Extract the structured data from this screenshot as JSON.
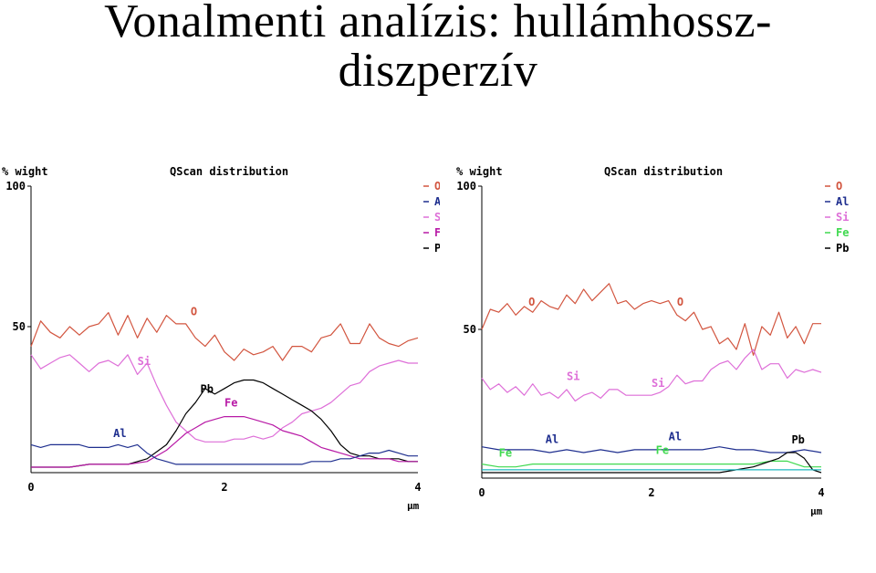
{
  "title": {
    "line1": "Vonalmenti analízis: hullámhossz-",
    "line2": "diszperzív"
  },
  "colors": {
    "O": "#d2553f",
    "Al": "#1f2f8f",
    "Si": "#de6fd8",
    "Fe_left": "#b81aa6",
    "Fe_right": "#3fd94f",
    "Pb": "#000000",
    "cyan_right": "#1fb8c0"
  },
  "chart_data": [
    {
      "type": "line",
      "title": "QScan distribution",
      "ylabel": "% wight",
      "xlabel": "µm",
      "xlim": [
        0,
        4
      ],
      "ylim": [
        0,
        100
      ],
      "xticks": [
        "0",
        "2",
        "4"
      ],
      "yticks": [
        "100",
        "50"
      ],
      "legend": [
        "O",
        "Al",
        "Si",
        "Fe",
        "Pb"
      ],
      "legend_position": "top-right",
      "series": [
        {
          "name": "O",
          "color": "#d2553f",
          "label_text": "O",
          "x": [
            0,
            0.1,
            0.2,
            0.3,
            0.4,
            0.5,
            0.6,
            0.7,
            0.8,
            0.9,
            1.0,
            1.1,
            1.2,
            1.3,
            1.4,
            1.5,
            1.6,
            1.7,
            1.8,
            1.9,
            2.0,
            2.1,
            2.2,
            2.3,
            2.4,
            2.5,
            2.6,
            2.7,
            2.8,
            2.9,
            3.0,
            3.1,
            3.2,
            3.3,
            3.4,
            3.5,
            3.6,
            3.7,
            3.8,
            3.9,
            4.0
          ],
          "y": [
            43,
            52,
            48,
            46,
            50,
            47,
            50,
            51,
            55,
            47,
            54,
            46,
            53,
            48,
            54,
            51,
            51,
            46,
            43,
            47,
            41,
            38,
            42,
            40,
            41,
            43,
            38,
            43,
            43,
            41,
            46,
            47,
            51,
            44,
            44,
            51,
            46,
            44,
            43,
            45,
            46
          ]
        },
        {
          "name": "Si",
          "color": "#de6fd8",
          "label_text": "Si",
          "x": [
            0,
            0.1,
            0.2,
            0.3,
            0.4,
            0.5,
            0.6,
            0.7,
            0.8,
            0.9,
            1.0,
            1.1,
            1.2,
            1.3,
            1.4,
            1.5,
            1.6,
            1.7,
            1.8,
            1.9,
            2.0,
            2.1,
            2.2,
            2.3,
            2.4,
            2.5,
            2.6,
            2.7,
            2.8,
            2.9,
            3.0,
            3.1,
            3.2,
            3.3,
            3.4,
            3.5,
            3.6,
            3.7,
            3.8,
            3.9,
            4.0
          ],
          "y": [
            40,
            35,
            37,
            39,
            40,
            37,
            34,
            37,
            38,
            36,
            40,
            33,
            37,
            29,
            22,
            16,
            13,
            10,
            9,
            9,
            9,
            10,
            10,
            11,
            10,
            11,
            14,
            16,
            19,
            20,
            21,
            23,
            26,
            29,
            30,
            34,
            36,
            37,
            38,
            37,
            37
          ]
        },
        {
          "name": "Pb",
          "color": "#000000",
          "label_text": "Pb",
          "x": [
            0,
            0.2,
            0.4,
            0.6,
            0.8,
            1.0,
            1.2,
            1.4,
            1.5,
            1.6,
            1.7,
            1.8,
            1.9,
            2.0,
            2.1,
            2.2,
            2.3,
            2.4,
            2.5,
            2.6,
            2.7,
            2.8,
            2.9,
            3.0,
            3.1,
            3.2,
            3.3,
            3.4,
            3.5,
            3.6,
            3.7,
            3.8,
            3.9,
            4.0
          ],
          "y": [
            0,
            0,
            0,
            1,
            1,
            1,
            3,
            8,
            13,
            19,
            23,
            28,
            26,
            28,
            30,
            31,
            31,
            30,
            28,
            26,
            24,
            22,
            20,
            17,
            13,
            8,
            5,
            4,
            4,
            3,
            3,
            3,
            2,
            2
          ]
        },
        {
          "name": "Fe",
          "color": "#b81aa6",
          "label_text": "Fe",
          "x": [
            0,
            0.2,
            0.4,
            0.6,
            0.8,
            1.0,
            1.2,
            1.4,
            1.5,
            1.6,
            1.7,
            1.8,
            1.9,
            2.0,
            2.1,
            2.2,
            2.3,
            2.4,
            2.5,
            2.6,
            2.7,
            2.8,
            2.9,
            3.0,
            3.1,
            3.2,
            3.3,
            3.4,
            3.5,
            3.6,
            3.7,
            3.8,
            3.9,
            4.0
          ],
          "y": [
            0,
            0,
            0,
            1,
            1,
            1,
            2,
            6,
            9,
            12,
            14,
            16,
            17,
            18,
            18,
            18,
            17,
            16,
            15,
            13,
            12,
            11,
            9,
            7,
            6,
            5,
            4,
            3,
            3,
            3,
            3,
            2,
            2,
            2
          ]
        },
        {
          "name": "Al",
          "color": "#1f2f8f",
          "label_text": "Al",
          "x": [
            0,
            0.1,
            0.2,
            0.3,
            0.4,
            0.5,
            0.6,
            0.7,
            0.8,
            0.9,
            1.0,
            1.1,
            1.2,
            1.3,
            1.4,
            1.5,
            1.6,
            1.7,
            1.8,
            1.9,
            2.0,
            2.1,
            2.2,
            2.3,
            2.4,
            2.5,
            2.6,
            2.7,
            2.8,
            2.9,
            3.0,
            3.1,
            3.2,
            3.3,
            3.4,
            3.5,
            3.6,
            3.7,
            3.8,
            3.9,
            4.0
          ],
          "y": [
            8,
            7,
            8,
            8,
            8,
            8,
            7,
            7,
            7,
            8,
            7,
            8,
            5,
            3,
            2,
            1,
            1,
            1,
            1,
            1,
            1,
            1,
            1,
            1,
            1,
            1,
            1,
            1,
            1,
            2,
            2,
            2,
            3,
            3,
            4,
            5,
            5,
            6,
            5,
            4,
            4
          ]
        }
      ]
    },
    {
      "type": "line",
      "title": "QScan distribution",
      "ylabel": "% wight",
      "xlabel": "µm",
      "xlim": [
        0,
        4
      ],
      "ylim": [
        0,
        100
      ],
      "xticks": [
        "0",
        "2",
        "4"
      ],
      "yticks": [
        "100",
        "50"
      ],
      "legend": [
        "O",
        "Al",
        "Si",
        "Fe",
        "Pb"
      ],
      "legend_position": "top-right",
      "series": [
        {
          "name": "O",
          "color": "#d2553f",
          "label_text": "O",
          "x": [
            0,
            0.1,
            0.2,
            0.3,
            0.4,
            0.5,
            0.6,
            0.7,
            0.8,
            0.9,
            1.0,
            1.1,
            1.2,
            1.3,
            1.4,
            1.5,
            1.6,
            1.7,
            1.8,
            1.9,
            2.0,
            2.1,
            2.2,
            2.3,
            2.4,
            2.5,
            2.6,
            2.7,
            2.8,
            2.9,
            3.0,
            3.1,
            3.2,
            3.3,
            3.4,
            3.5,
            3.6,
            3.7,
            3.8,
            3.9,
            4.0
          ],
          "y": [
            50,
            57,
            56,
            59,
            55,
            58,
            56,
            60,
            58,
            57,
            62,
            59,
            64,
            60,
            63,
            66,
            59,
            60,
            57,
            59,
            60,
            59,
            60,
            55,
            53,
            56,
            50,
            51,
            45,
            47,
            43,
            52,
            41,
            51,
            48,
            56,
            47,
            51,
            45,
            52,
            52
          ]
        },
        {
          "name": "Si",
          "color": "#de6fd8",
          "label_text": "Si",
          "x": [
            0,
            0.1,
            0.2,
            0.3,
            0.4,
            0.5,
            0.6,
            0.7,
            0.8,
            0.9,
            1.0,
            1.1,
            1.2,
            1.3,
            1.4,
            1.5,
            1.6,
            1.7,
            1.8,
            1.9,
            2.0,
            2.1,
            2.2,
            2.3,
            2.4,
            2.5,
            2.6,
            2.7,
            2.8,
            2.9,
            3.0,
            3.1,
            3.2,
            3.3,
            3.4,
            3.5,
            3.6,
            3.7,
            3.8,
            3.9,
            4.0
          ],
          "y": [
            33,
            29,
            31,
            28,
            30,
            27,
            31,
            27,
            28,
            26,
            29,
            25,
            27,
            28,
            26,
            29,
            29,
            27,
            27,
            27,
            27,
            28,
            30,
            34,
            31,
            32,
            32,
            36,
            38,
            39,
            36,
            40,
            43,
            36,
            38,
            38,
            33,
            36,
            35,
            36,
            35
          ]
        },
        {
          "name": "Al",
          "color": "#1f2f8f",
          "label_text": "Al",
          "x": [
            0,
            0.2,
            0.4,
            0.6,
            0.8,
            1.0,
            1.2,
            1.4,
            1.6,
            1.8,
            2.0,
            2.2,
            2.4,
            2.6,
            2.8,
            3.0,
            3.2,
            3.4,
            3.6,
            3.8,
            4.0
          ],
          "y": [
            9,
            8,
            8,
            8,
            7,
            8,
            7,
            8,
            7,
            8,
            8,
            8,
            8,
            8,
            9,
            8,
            8,
            7,
            7,
            8,
            7
          ]
        },
        {
          "name": "Fe",
          "color": "#3fd94f",
          "label_text": "Fe",
          "x": [
            0,
            0.2,
            0.4,
            0.6,
            0.8,
            1.0,
            1.2,
            1.4,
            1.6,
            1.8,
            2.0,
            2.2,
            2.4,
            2.6,
            2.8,
            3.0,
            3.2,
            3.4,
            3.6,
            3.8,
            4.0
          ],
          "y": [
            3,
            2,
            2,
            3,
            3,
            3,
            3,
            3,
            3,
            3,
            3,
            3,
            3,
            3,
            3,
            3,
            3,
            4,
            4,
            2,
            2
          ]
        },
        {
          "name": "Pb",
          "color": "#000000",
          "label_text": "Pb",
          "x": [
            0,
            0.4,
            0.8,
            1.2,
            1.6,
            2.0,
            2.4,
            2.8,
            3.0,
            3.2,
            3.3,
            3.4,
            3.5,
            3.6,
            3.7,
            3.8,
            3.9,
            4.0
          ],
          "y": [
            0,
            0,
            0,
            0,
            0,
            0,
            0,
            0,
            1,
            2,
            3,
            4,
            5,
            7,
            7,
            5,
            1,
            0
          ]
        },
        {
          "name": "",
          "color": "#1fb8c0",
          "label_text": "",
          "x": [
            0,
            0.5,
            1.0,
            1.5,
            2.0,
            2.5,
            3.0,
            3.5,
            4.0
          ],
          "y": [
            1,
            1,
            1,
            1,
            1,
            1,
            1,
            1,
            1
          ]
        }
      ]
    }
  ]
}
